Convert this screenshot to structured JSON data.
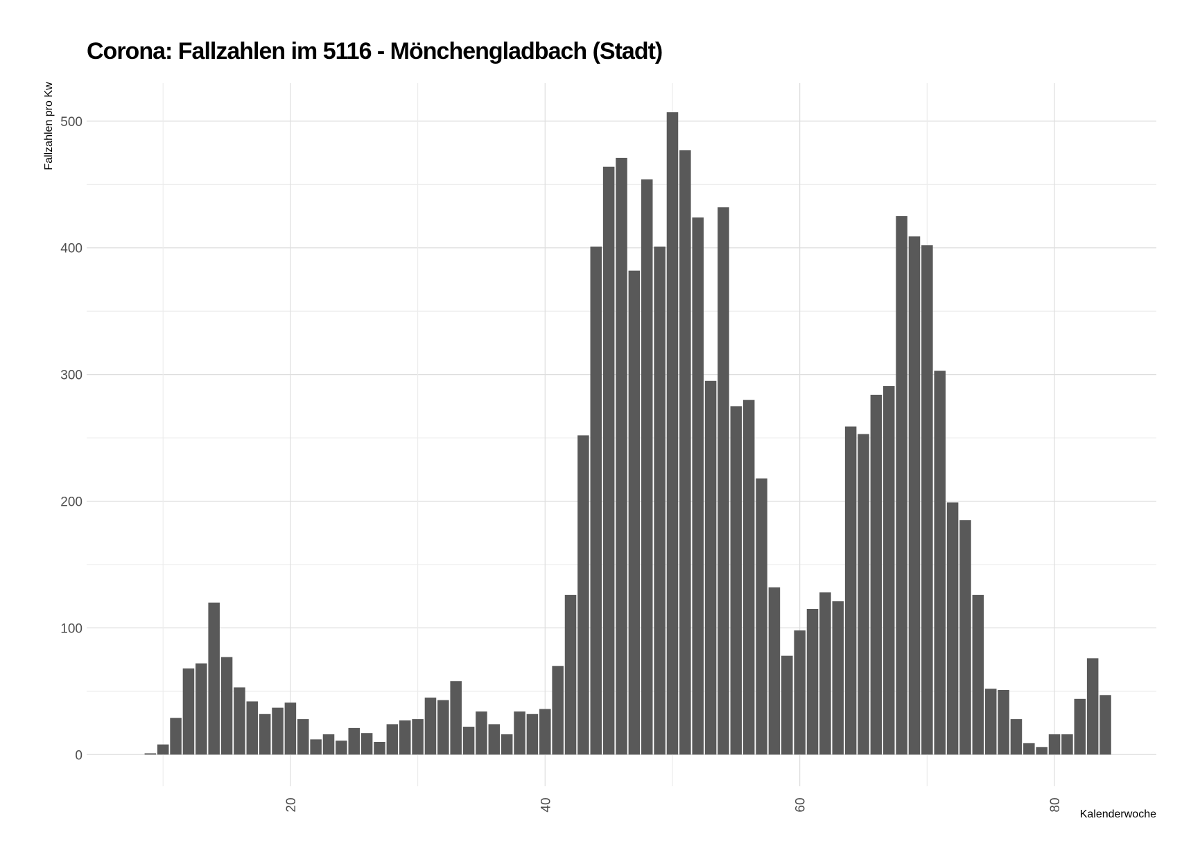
{
  "chart_data": {
    "type": "bar",
    "title": "Corona: Fallzahlen im 5116 - Mönchengladbach (Stadt)",
    "xlabel": "Kalenderwoche",
    "ylabel": "Fallzahlen pro Kw",
    "xlim": [
      4,
      88
    ],
    "ylim": [
      -25,
      530
    ],
    "x_ticks": [
      20,
      40,
      60,
      80
    ],
    "y_ticks": [
      0,
      100,
      200,
      300,
      400,
      500
    ],
    "grid": true,
    "bar_color": "#595959",
    "x": [
      9,
      10,
      11,
      12,
      13,
      14,
      15,
      16,
      17,
      18,
      19,
      20,
      21,
      22,
      23,
      24,
      25,
      26,
      27,
      28,
      29,
      30,
      31,
      32,
      33,
      34,
      35,
      36,
      37,
      38,
      39,
      40,
      41,
      42,
      43,
      44,
      45,
      46,
      47,
      48,
      49,
      50,
      51,
      52,
      53,
      54,
      55,
      56,
      57,
      58,
      59,
      60,
      61,
      62,
      63,
      64,
      65,
      66,
      67,
      68,
      69,
      70,
      71,
      72,
      73,
      74,
      75,
      76,
      77,
      78,
      79,
      80,
      81,
      82,
      83,
      84
    ],
    "values": [
      1,
      8,
      29,
      68,
      72,
      120,
      77,
      53,
      42,
      32,
      37,
      41,
      28,
      12,
      16,
      11,
      21,
      17,
      10,
      24,
      27,
      28,
      45,
      43,
      58,
      22,
      34,
      24,
      16,
      34,
      32,
      36,
      70,
      126,
      252,
      401,
      464,
      471,
      382,
      454,
      401,
      507,
      477,
      424,
      295,
      432,
      275,
      280,
      218,
      132,
      78,
      98,
      115,
      128,
      121,
      259,
      253,
      284,
      291,
      425,
      409,
      402,
      303,
      199,
      185,
      126,
      52,
      51,
      28,
      9,
      6,
      16,
      16,
      44,
      76,
      47
    ]
  }
}
